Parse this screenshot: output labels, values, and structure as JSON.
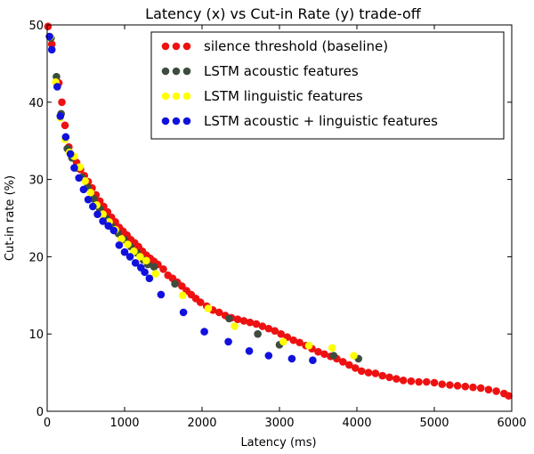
{
  "chart_data": {
    "type": "scatter",
    "title": "Latency (x) vs Cut-in Rate (y) trade-off",
    "xlabel": "Latency (ms)",
    "ylabel": "Cut-in rate (%)",
    "xlim": [
      0,
      6000
    ],
    "ylim": [
      0,
      50
    ],
    "xticks": [
      0,
      1000,
      2000,
      3000,
      4000,
      5000,
      6000
    ],
    "yticks": [
      0,
      10,
      20,
      30,
      40,
      50
    ],
    "grid": false,
    "legend_position": "top-right",
    "series": [
      {
        "name": "silence threshold (baseline)",
        "color": "#ee1111",
        "x": [
          10,
          60,
          150,
          190,
          230,
          280,
          330,
          380,
          430,
          480,
          530,
          580,
          630,
          680,
          730,
          780,
          830,
          880,
          930,
          980,
          1030,
          1080,
          1130,
          1180,
          1230,
          1280,
          1330,
          1380,
          1430,
          1500,
          1560,
          1620,
          1680,
          1740,
          1800,
          1860,
          1920,
          1980,
          2060,
          2140,
          2220,
          2300,
          2380,
          2460,
          2540,
          2620,
          2700,
          2780,
          2860,
          2940,
          3020,
          3100,
          3180,
          3260,
          3340,
          3420,
          3500,
          3580,
          3660,
          3740,
          3820,
          3900,
          3980,
          4060,
          4150,
          4240,
          4330,
          4420,
          4510,
          4600,
          4700,
          4800,
          4900,
          5000,
          5100,
          5200,
          5300,
          5400,
          5500,
          5600,
          5700,
          5800,
          5900,
          5960
        ],
        "y": [
          49.8,
          47.5,
          42.5,
          40.0,
          37.0,
          34.2,
          33.0,
          32.2,
          31.3,
          30.5,
          29.7,
          28.9,
          28.0,
          27.2,
          26.5,
          25.8,
          25.1,
          24.5,
          23.8,
          23.3,
          22.8,
          22.2,
          21.8,
          21.3,
          20.7,
          20.2,
          19.8,
          19.4,
          19.0,
          18.4,
          17.6,
          17.2,
          16.7,
          16.2,
          15.6,
          15.1,
          14.6,
          14.1,
          13.6,
          13.1,
          12.8,
          12.4,
          12.1,
          11.9,
          11.7,
          11.5,
          11.3,
          11.0,
          10.7,
          10.4,
          10.0,
          9.6,
          9.2,
          8.9,
          8.5,
          8.1,
          7.7,
          7.4,
          7.1,
          6.8,
          6.4,
          6.0,
          5.6,
          5.2,
          5.0,
          4.9,
          4.6,
          4.4,
          4.2,
          4.0,
          3.9,
          3.8,
          3.8,
          3.7,
          3.5,
          3.4,
          3.3,
          3.2,
          3.1,
          3.0,
          2.8,
          2.6,
          2.3,
          2.0
        ]
      },
      {
        "name": "LSTM acoustic features",
        "color": "#3d4d3d",
        "x": [
          50,
          120,
          180,
          260,
          320,
          380,
          450,
          520,
          600,
          680,
          760,
          840,
          920,
          1000,
          1080,
          1160,
          1240,
          1300,
          1380,
          1650,
          2350,
          2720,
          3000,
          3700,
          4020
        ],
        "y": [
          48.3,
          43.3,
          38.5,
          34.0,
          32.8,
          31.5,
          30.3,
          29.0,
          27.5,
          26.2,
          25.0,
          23.9,
          23.0,
          22.2,
          21.3,
          20.5,
          19.6,
          19.0,
          18.7,
          16.5,
          12.0,
          10.0,
          8.6,
          7.2,
          6.8
        ]
      },
      {
        "name": "LSTM linguistic features",
        "color": "#ffff00",
        "x": [
          40,
          110,
          170,
          230,
          290,
          350,
          420,
          490,
          560,
          640,
          720,
          800,
          880,
          960,
          1040,
          1120,
          1200,
          1280,
          1400,
          1750,
          2080,
          2420,
          3050,
          3380,
          3680,
          3960
        ],
        "y": [
          48.5,
          42.6,
          38.0,
          35.2,
          33.5,
          33.0,
          31.6,
          29.8,
          28.3,
          26.7,
          25.5,
          24.5,
          23.5,
          22.3,
          21.6,
          20.7,
          20.0,
          19.5,
          17.8,
          15.0,
          13.3,
          11.0,
          9.0,
          8.5,
          8.2,
          7.2
        ]
      },
      {
        "name": "LSTM acoustic + linguistic features",
        "color": "#1111dd",
        "x": [
          30,
          60,
          130,
          170,
          240,
          300,
          350,
          410,
          470,
          530,
          590,
          650,
          720,
          790,
          860,
          930,
          1000,
          1070,
          1140,
          1210,
          1260,
          1320,
          1470,
          1760,
          2030,
          2340,
          2610,
          2860,
          3160,
          3430
        ],
        "y": [
          48.5,
          46.8,
          42.0,
          38.2,
          35.5,
          33.3,
          31.5,
          30.2,
          28.7,
          27.4,
          26.5,
          25.5,
          24.6,
          24.0,
          23.4,
          21.5,
          20.6,
          20.0,
          19.2,
          18.6,
          18.0,
          17.2,
          15.1,
          12.8,
          10.3,
          9.0,
          7.8,
          7.2,
          6.8,
          6.6
        ]
      }
    ]
  }
}
